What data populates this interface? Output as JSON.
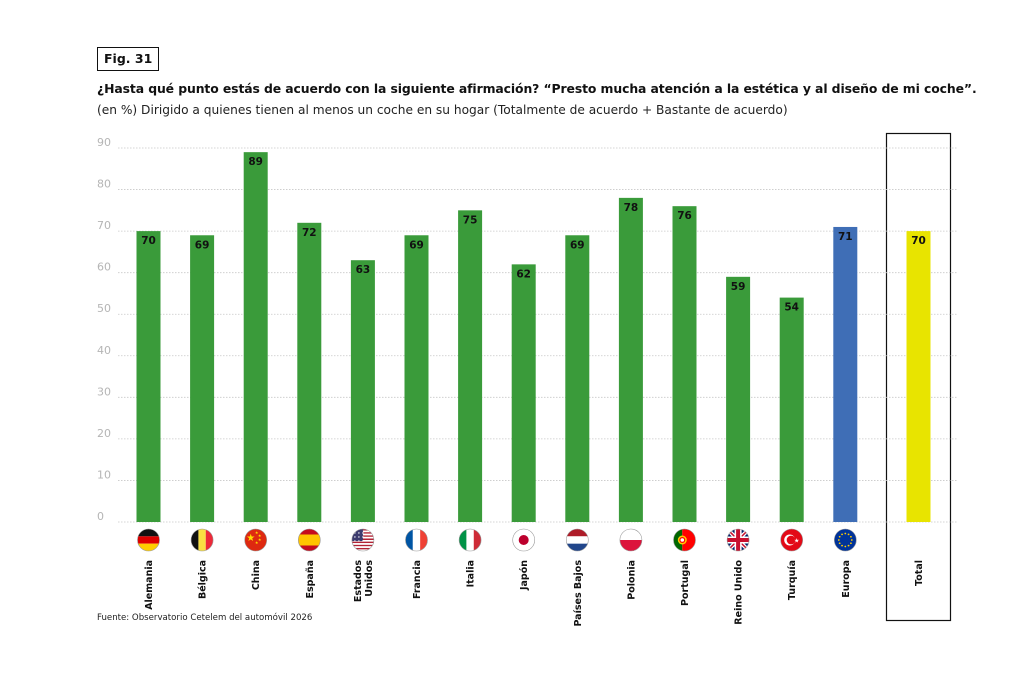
{
  "figure": {
    "label": "Fig. 31",
    "title": "¿Hasta qué punto estás de acuerdo con la siguiente afirmación? “Presto mucha atención a la estética y al diseño de mi coche”.",
    "subtitle": "(en %) Dirigido a quienes tienen al menos un coche en su hogar (Totalmente de acuerdo + Bastante de acuerdo)",
    "source": "Fuente: Observatorio Cetelem del automóvil 2026"
  },
  "colors": {
    "country": "#3a9b3a",
    "europe": "#3f6eb6",
    "total": "#e8e400",
    "grid": "#c8c8c8",
    "tick": "#b5b5b5"
  },
  "chart_data": {
    "type": "bar",
    "title": "¿Hasta qué punto estás de acuerdo con la siguiente afirmación? “Presto mucha atención a la estética y al diseño de mi coche”.",
    "xlabel": "",
    "ylabel": "%",
    "ylim": [
      0,
      90
    ],
    "yticks": [
      0,
      10,
      20,
      30,
      40,
      50,
      60,
      70,
      80,
      90
    ],
    "grid": true,
    "categories": [
      {
        "label": "Alemania",
        "value": 70,
        "kind": "country",
        "flag": "germany-flag-icon"
      },
      {
        "label": "Bélgica",
        "value": 69,
        "kind": "country",
        "flag": "belgium-flag-icon"
      },
      {
        "label": "China",
        "value": 89,
        "kind": "country",
        "flag": "china-flag-icon"
      },
      {
        "label": "España",
        "value": 72,
        "kind": "country",
        "flag": "spain-flag-icon"
      },
      {
        "label": "Estados Unidos",
        "lines": [
          "Estados",
          "Unidos"
        ],
        "value": 63,
        "kind": "country",
        "flag": "usa-flag-icon"
      },
      {
        "label": "Francia",
        "value": 69,
        "kind": "country",
        "flag": "france-flag-icon"
      },
      {
        "label": "Italia",
        "value": 75,
        "kind": "country",
        "flag": "italy-flag-icon"
      },
      {
        "label": "Japón",
        "value": 62,
        "kind": "country",
        "flag": "japan-flag-icon"
      },
      {
        "label": "Países Bajos",
        "value": 69,
        "kind": "country",
        "flag": "netherlands-flag-icon"
      },
      {
        "label": "Polonia",
        "value": 78,
        "kind": "country",
        "flag": "poland-flag-icon"
      },
      {
        "label": "Portugal",
        "value": 76,
        "kind": "country",
        "flag": "portugal-flag-icon"
      },
      {
        "label": "Reino Unido",
        "value": 59,
        "kind": "country",
        "flag": "uk-flag-icon"
      },
      {
        "label": "Turquía",
        "value": 54,
        "kind": "country",
        "flag": "turkey-flag-icon"
      },
      {
        "label": "Europa",
        "value": 71,
        "kind": "europe",
        "flag": "eu-flag-icon"
      },
      {
        "label": "Total",
        "value": 70,
        "kind": "total",
        "flag": ""
      }
    ]
  }
}
